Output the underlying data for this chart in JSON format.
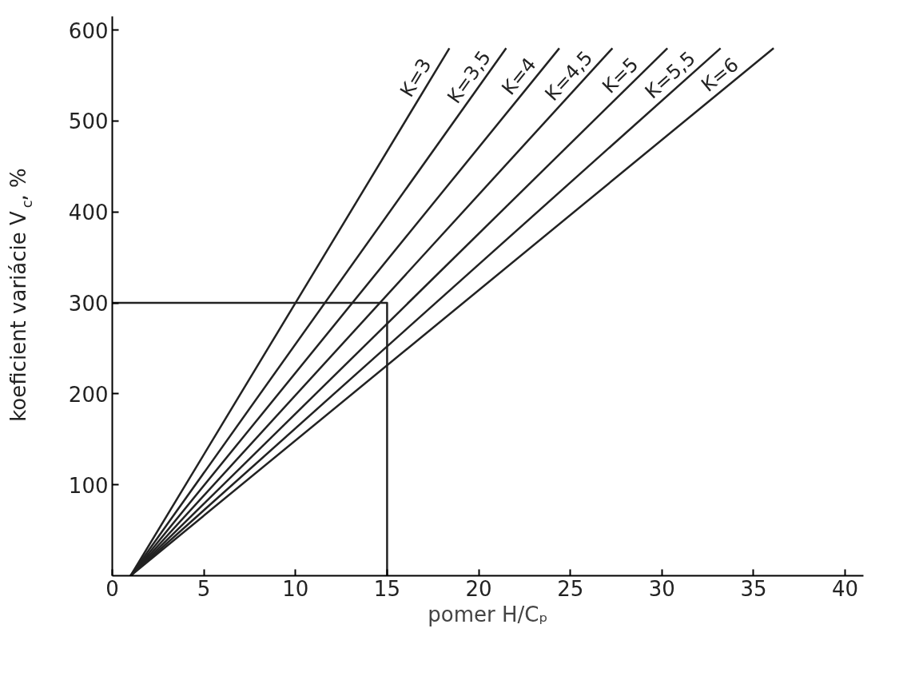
{
  "chart_data": {
    "type": "line",
    "xlabel": "pomer H/Cₚ",
    "ylabel": "koeficient variácie V$_{c}$, %",
    "xlim": [
      0,
      41
    ],
    "ylim": [
      0,
      615
    ],
    "xticks": [
      0,
      5,
      10,
      15,
      20,
      25,
      30,
      35,
      40
    ],
    "yticks": [
      100,
      200,
      300,
      400,
      500,
      600
    ],
    "grid": false,
    "legend": false,
    "marker": "none",
    "line_style": "solid",
    "series": [
      {
        "name": "K=3",
        "color": "#222222",
        "x": [
          1,
          18.4
        ],
        "values": [
          0,
          580
        ]
      },
      {
        "name": "K=3,5",
        "color": "#222222",
        "x": [
          1,
          21.5
        ],
        "values": [
          0,
          580
        ]
      },
      {
        "name": "K=4",
        "color": "#222222",
        "x": [
          1,
          24.4
        ],
        "values": [
          0,
          580
        ]
      },
      {
        "name": "K=4,5",
        "color": "#222222",
        "x": [
          1,
          27.3
        ],
        "values": [
          0,
          580
        ]
      },
      {
        "name": "K=5",
        "color": "#222222",
        "x": [
          1,
          30.3
        ],
        "values": [
          0,
          580
        ]
      },
      {
        "name": "K=5,5",
        "color": "#222222",
        "x": [
          1,
          33.2
        ],
        "values": [
          0,
          580
        ]
      },
      {
        "name": "K=6",
        "color": "#222222",
        "x": [
          1,
          36.1
        ],
        "values": [
          0,
          580
        ]
      },
      {
        "color": "#222222",
        "x": [
          0,
          15,
          15
        ],
        "values": [
          300,
          300,
          0
        ]
      }
    ]
  }
}
